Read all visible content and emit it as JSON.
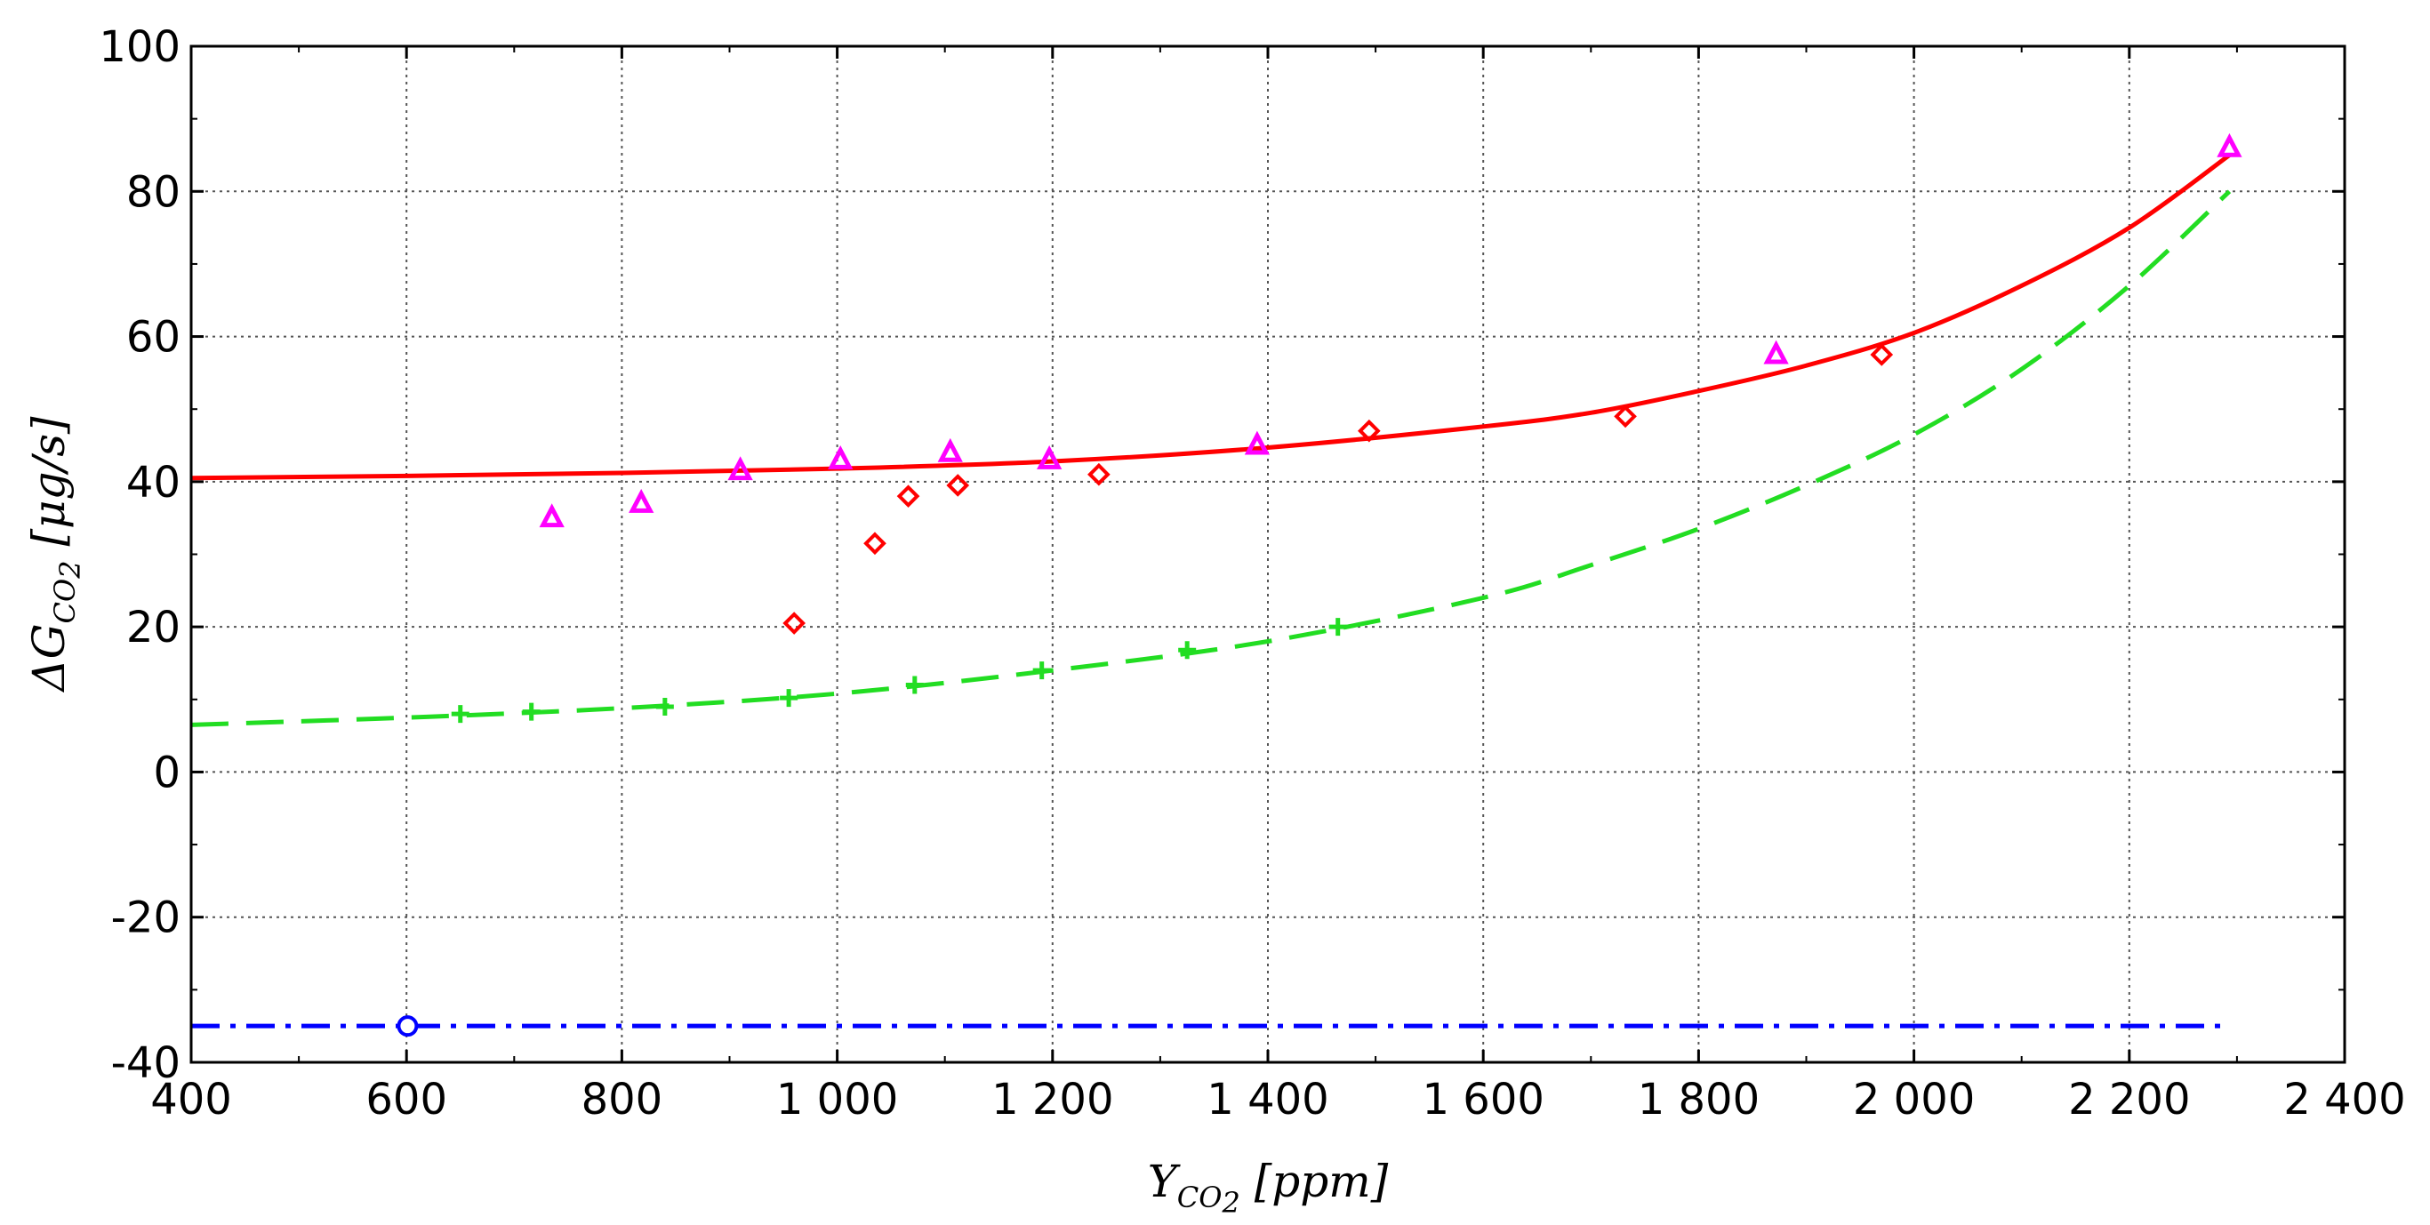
{
  "chart_data": {
    "type": "scatter",
    "xlabel": "Y_{CO_2} [ppm]",
    "ylabel": "ΔG_{CO_2} [μg/s]",
    "xlim": [
      400,
      2400
    ],
    "ylim": [
      -40,
      100
    ],
    "grid": true,
    "x_ticks": [
      400,
      600,
      800,
      1000,
      1200,
      1400,
      1600,
      1800,
      2000,
      2200,
      2400
    ],
    "x_tick_labels": [
      "400",
      "600",
      "800",
      "1 000",
      "1 200",
      "1 400",
      "1 600",
      "1 800",
      "2 000",
      "2 200",
      "2 400"
    ],
    "y_ticks": [
      -40,
      -20,
      0,
      20,
      40,
      60,
      80,
      100
    ],
    "y_tick_labels": [
      "-40",
      "-20",
      "0",
      "20",
      "40",
      "60",
      "80",
      "100"
    ],
    "series": [
      {
        "kind": "points",
        "marker": "triangle",
        "color": "#ff00ff",
        "x": [
          735,
          818,
          910,
          1003,
          1105,
          1197,
          1390,
          1872,
          2293
        ],
        "y": [
          35,
          37,
          41.5,
          43,
          44,
          43,
          45,
          57.5,
          86
        ]
      },
      {
        "kind": "points",
        "marker": "diamond",
        "color": "#ff0000",
        "x": [
          960,
          1035,
          1066,
          1112,
          1243,
          1494,
          1732,
          1970
        ],
        "y": [
          20.5,
          31.5,
          38,
          39.5,
          41,
          47,
          49,
          57.5
        ]
      },
      {
        "kind": "points",
        "marker": "plus",
        "color": "#22dd22",
        "x": [
          650,
          716,
          840,
          955,
          1072,
          1190,
          1325,
          1465
        ],
        "y": [
          8,
          8.3,
          9,
          10.2,
          12,
          14,
          16.8,
          20
        ]
      },
      {
        "kind": "points",
        "marker": "circle",
        "color": "#0000ff",
        "x": [
          601
        ],
        "y": [
          -35
        ]
      },
      {
        "kind": "line",
        "style": "solid",
        "color": "#ff0000",
        "x": [
          400,
          600,
          800,
          1000,
          1200,
          1400,
          1600,
          1700,
          1800,
          1900,
          2000,
          2100,
          2200,
          2293
        ],
        "y": [
          40.5,
          40.8,
          41.2,
          41.8,
          42.8,
          44.7,
          47.6,
          49.5,
          52.5,
          56,
          60.5,
          67,
          75,
          85
        ]
      },
      {
        "kind": "line",
        "style": "dashed",
        "color": "#22dd22",
        "x": [
          400,
          600,
          800,
          1000,
          1200,
          1400,
          1600,
          1700,
          1800,
          1900,
          2000,
          2100,
          2200,
          2293
        ],
        "y": [
          6.5,
          7.5,
          8.8,
          10.8,
          14,
          18,
          24,
          28.5,
          33.5,
          39.5,
          46.5,
          55.5,
          67,
          80
        ]
      },
      {
        "kind": "line",
        "style": "dashdot",
        "color": "#0000ff",
        "x": [
          400,
          2293
        ],
        "y": [
          -35,
          -35
        ]
      }
    ]
  }
}
